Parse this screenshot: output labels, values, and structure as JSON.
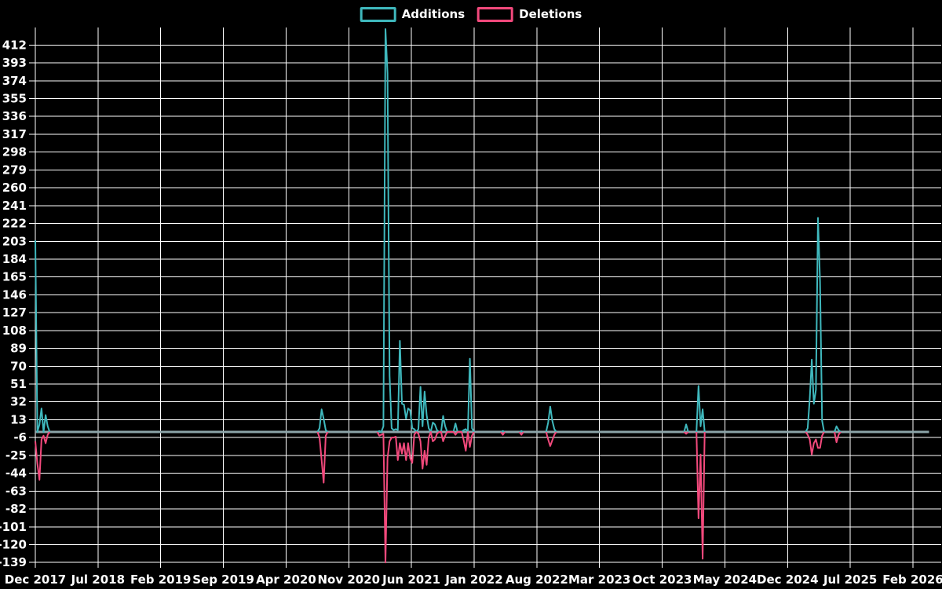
{
  "chart_data": {
    "type": "line",
    "title": "",
    "xlabel": "",
    "ylabel": "",
    "background_color": "#000000",
    "grid_color": "#ffffff",
    "text_color": "#ffffff",
    "zero_line_color": "#8ca4a8",
    "legend_position": "top-center",
    "grid": "on",
    "x_unit": "week",
    "x_start_label": "Dec 2017",
    "x_end_label": "Feb 2026",
    "x_tick_interval_months": 7,
    "x_ticks": [
      "Dec 2017",
      "Jul 2018",
      "Feb 2019",
      "Sep 2019",
      "Apr 2020",
      "Nov 2020",
      "Jun 2021",
      "Jan 2022",
      "Aug 2022",
      "Mar 2023",
      "Oct 2023",
      "May 2024",
      "Dec 2024",
      "Jul 2025",
      "Feb 2026"
    ],
    "y_ticks": [
      412,
      393,
      374,
      355,
      336,
      317,
      298,
      279,
      260,
      241,
      222,
      203,
      184,
      165,
      146,
      127,
      108,
      89,
      70,
      51,
      32,
      13,
      -6,
      -25,
      -44,
      -63,
      -82,
      -101,
      -120,
      -139
    ],
    "ylim": [
      -148,
      431
    ],
    "weeks_total": 435,
    "series": [
      {
        "name": "Additions",
        "color": "#3fb8bd",
        "note": "weekly additions; sparse [weekIndex, value]; all other weeks are 0",
        "points_sparse": [
          [
            0,
            204
          ],
          [
            2,
            8
          ],
          [
            3,
            25
          ],
          [
            5,
            18
          ],
          [
            6,
            6
          ],
          [
            138,
            4
          ],
          [
            139,
            24
          ],
          [
            140,
            14
          ],
          [
            141,
            2
          ],
          [
            167,
            1
          ],
          [
            169,
            6
          ],
          [
            170,
            429
          ],
          [
            171,
            382
          ],
          [
            172,
            60
          ],
          [
            173,
            4
          ],
          [
            174,
            2
          ],
          [
            175,
            3
          ],
          [
            176,
            2
          ],
          [
            177,
            97
          ],
          [
            178,
            30
          ],
          [
            179,
            29
          ],
          [
            180,
            14
          ],
          [
            181,
            25
          ],
          [
            182,
            23
          ],
          [
            183,
            4
          ],
          [
            184,
            3
          ],
          [
            186,
            3
          ],
          [
            187,
            48
          ],
          [
            188,
            6
          ],
          [
            189,
            43
          ],
          [
            190,
            18
          ],
          [
            191,
            4
          ],
          [
            193,
            10
          ],
          [
            194,
            8
          ],
          [
            195,
            2
          ],
          [
            198,
            17
          ],
          [
            199,
            6
          ],
          [
            204,
            9
          ],
          [
            208,
            2
          ],
          [
            209,
            3
          ],
          [
            211,
            78
          ],
          [
            212,
            4
          ],
          [
            227,
            1
          ],
          [
            236,
            1
          ],
          [
            249,
            10
          ],
          [
            250,
            27
          ],
          [
            251,
            12
          ],
          [
            252,
            3
          ],
          [
            316,
            8
          ],
          [
            322,
            49
          ],
          [
            323,
            6
          ],
          [
            324,
            24
          ],
          [
            375,
            4
          ],
          [
            376,
            35
          ],
          [
            377,
            77
          ],
          [
            378,
            30
          ],
          [
            379,
            45
          ],
          [
            380,
            228
          ],
          [
            381,
            160
          ],
          [
            382,
            12
          ],
          [
            389,
            6
          ],
          [
            390,
            2
          ]
        ]
      },
      {
        "name": "Deletions",
        "color": "#f2497c",
        "note": "weekly deletions; sparse [weekIndex, value]; all other weeks are 0",
        "points_sparse": [
          [
            0,
            -10
          ],
          [
            1,
            -34
          ],
          [
            2,
            -51
          ],
          [
            3,
            -8
          ],
          [
            4,
            -4
          ],
          [
            5,
            -12
          ],
          [
            6,
            -3
          ],
          [
            138,
            -6
          ],
          [
            139,
            -30
          ],
          [
            140,
            -54
          ],
          [
            141,
            -4
          ],
          [
            167,
            -4
          ],
          [
            168,
            -3
          ],
          [
            169,
            -2
          ],
          [
            170,
            -139
          ],
          [
            171,
            -28
          ],
          [
            172,
            -10
          ],
          [
            173,
            -6
          ],
          [
            174,
            -6
          ],
          [
            175,
            -5
          ],
          [
            176,
            -30
          ],
          [
            177,
            -12
          ],
          [
            178,
            -23
          ],
          [
            179,
            -12
          ],
          [
            180,
            -30
          ],
          [
            181,
            -12
          ],
          [
            182,
            -28
          ],
          [
            183,
            -33
          ],
          [
            184,
            -3
          ],
          [
            186,
            -2
          ],
          [
            187,
            -10
          ],
          [
            188,
            -39
          ],
          [
            189,
            -20
          ],
          [
            190,
            -35
          ],
          [
            191,
            -6
          ],
          [
            193,
            -10
          ],
          [
            194,
            -8
          ],
          [
            195,
            -2
          ],
          [
            198,
            -10
          ],
          [
            199,
            -4
          ],
          [
            204,
            -3
          ],
          [
            208,
            -9
          ],
          [
            209,
            -20
          ],
          [
            211,
            -16
          ],
          [
            212,
            -4
          ],
          [
            227,
            -3
          ],
          [
            236,
            -3
          ],
          [
            249,
            -8
          ],
          [
            250,
            -15
          ],
          [
            251,
            -9
          ],
          [
            252,
            -3
          ],
          [
            316,
            -2
          ],
          [
            322,
            -92
          ],
          [
            323,
            -24
          ],
          [
            324,
            -135
          ],
          [
            375,
            -3
          ],
          [
            376,
            -8
          ],
          [
            377,
            -24
          ],
          [
            378,
            -12
          ],
          [
            379,
            -8
          ],
          [
            380,
            -17
          ],
          [
            381,
            -17
          ],
          [
            382,
            -4
          ],
          [
            389,
            -11
          ],
          [
            390,
            -3
          ]
        ]
      }
    ]
  }
}
